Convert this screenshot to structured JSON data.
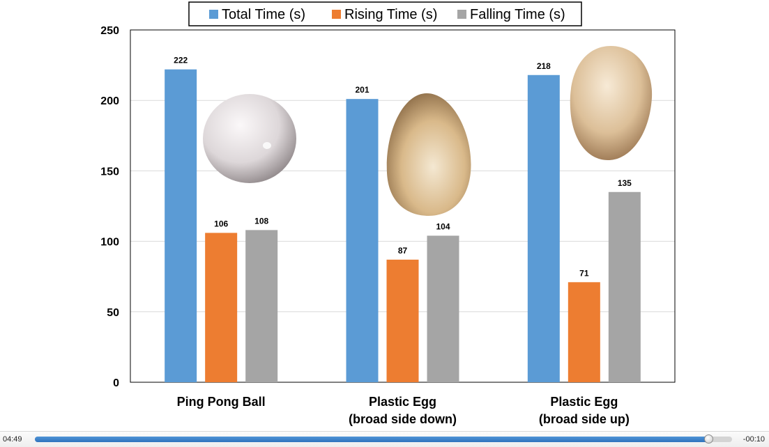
{
  "chart_data": {
    "type": "bar",
    "categories": [
      [
        "Ping Pong Ball"
      ],
      [
        "Plastic Egg",
        "(broad side down)"
      ],
      [
        "Plastic Egg",
        "(broad side up)"
      ]
    ],
    "series": [
      {
        "name": "Total Time (s)",
        "color": "#5b9bd5",
        "values": [
          222,
          201,
          218
        ]
      },
      {
        "name": "Rising Time (s)",
        "color": "#ed7d31",
        "values": [
          106,
          87,
          71
        ]
      },
      {
        "name": "Falling Time (s)",
        "color": "#a5a5a5",
        "values": [
          108,
          104,
          135
        ]
      }
    ],
    "ylim": [
      0,
      250
    ],
    "yticks": [
      0,
      50,
      100,
      150,
      200,
      250
    ],
    "grid": true,
    "legend": "top-center",
    "data_labels": true,
    "images": [
      "ping-pong-ball-photo",
      "plastic-egg-broad-side-down-photo",
      "plastic-egg-broad-side-up-photo"
    ]
  },
  "player": {
    "elapsed": "04:49",
    "remaining": "-00:10",
    "progress": 0.966
  }
}
